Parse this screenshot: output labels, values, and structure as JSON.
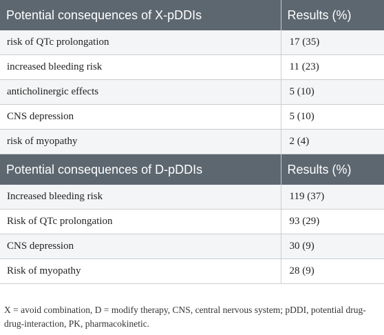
{
  "sections": [
    {
      "header": {
        "label": "Potential consequences of X-pDDIs",
        "value": "Results (%)"
      },
      "rows": [
        {
          "label": "risk of QTc prolongation",
          "value": "17 (35)"
        },
        {
          "label": "increased bleeding risk",
          "value": "11 (23)"
        },
        {
          "label": "anticholinergic effects",
          "value": "5 (10)"
        },
        {
          "label": "CNS depression",
          "value": "5 (10)"
        },
        {
          "label": "risk of myopathy",
          "value": "2 (4)"
        }
      ]
    },
    {
      "header": {
        "label": "Potential consequences of D-pDDIs",
        "value": "Results (%)"
      },
      "rows": [
        {
          "label": "Increased bleeding risk",
          "value": "119 (37)"
        },
        {
          "label": "Risk of QTc prolongation",
          "value": "93 (29)"
        },
        {
          "label": "CNS depression",
          "value": "30 (9)"
        },
        {
          "label": "Risk of myopathy",
          "value": "28 (9)"
        }
      ]
    }
  ],
  "footnote": "X = avoid combination, D = modify therapy, CNS, central nervous system; pDDI, potential drug-drug-interaction, PK, pharmacokinetic.",
  "colors": {
    "header_bg": "#5d6770",
    "row_alt_bg": "#f4f5f6",
    "rule": "#c9cdd1"
  }
}
